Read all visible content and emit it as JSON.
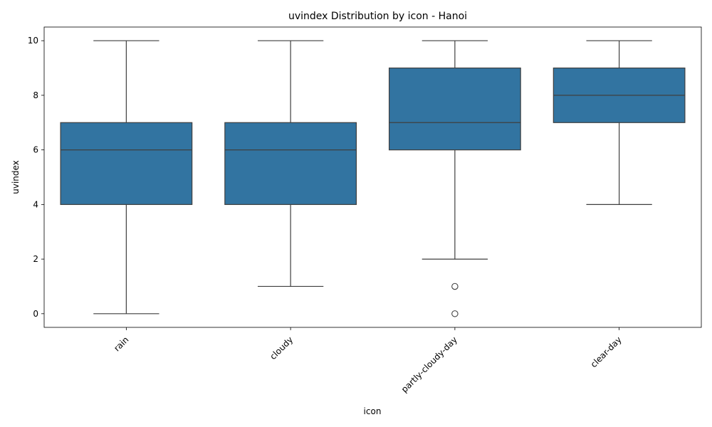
{
  "chart_data": {
    "type": "box",
    "title": "uvindex Distribution by icon - Hanoi",
    "xlabel": "icon",
    "ylabel": "uvindex",
    "categories": [
      "rain",
      "cloudy",
      "partly-cloudy-day",
      "clear-day"
    ],
    "boxes": [
      {
        "category": "rain",
        "whisker_low": 0,
        "q1": 4,
        "median": 6,
        "q3": 7,
        "whisker_high": 10,
        "outliers": []
      },
      {
        "category": "cloudy",
        "whisker_low": 1,
        "q1": 4,
        "median": 6,
        "q3": 7,
        "whisker_high": 10,
        "outliers": []
      },
      {
        "category": "partly-cloudy-day",
        "whisker_low": 2,
        "q1": 6,
        "median": 7,
        "q3": 9,
        "whisker_high": 10,
        "outliers": [
          1,
          0
        ]
      },
      {
        "category": "clear-day",
        "whisker_low": 4,
        "q1": 7,
        "median": 8,
        "q3": 9,
        "whisker_high": 10,
        "outliers": []
      }
    ],
    "ylim": [
      -0.5,
      10.5
    ],
    "yticks": [
      0,
      2,
      4,
      6,
      8,
      10
    ],
    "colors": {
      "box_fill": "#3274a1",
      "line": "#3f3f3f"
    }
  }
}
